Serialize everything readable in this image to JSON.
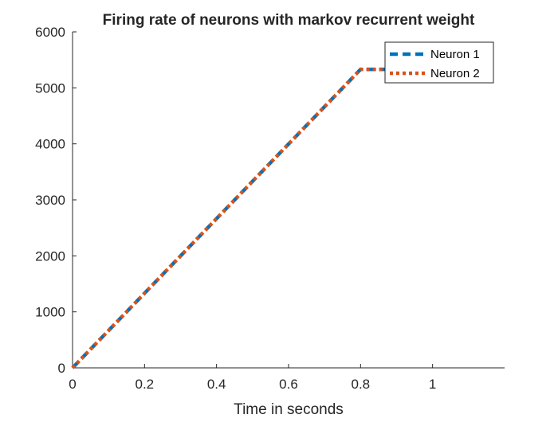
{
  "chart_data": {
    "type": "line",
    "title": "Firing rate of neurons with markov recurrent weight",
    "xlabel": "Time in seconds",
    "ylabel": "",
    "xlim": [
      0,
      1.2
    ],
    "ylim": [
      0,
      6000
    ],
    "xticks": [
      0,
      0.2,
      0.4,
      0.6,
      0.8,
      1
    ],
    "xtick_labels": [
      "0",
      "0.2",
      "0.4",
      "0.6",
      "0.8",
      "1"
    ],
    "yticks": [
      0,
      1000,
      2000,
      3000,
      4000,
      5000,
      6000
    ],
    "ytick_labels": [
      "0",
      "1000",
      "2000",
      "3000",
      "4000",
      "5000",
      "6000"
    ],
    "grid": false,
    "legend_position": "top-right",
    "series": [
      {
        "name": "Neuron 1",
        "color": "#0072BD",
        "line_style": "dashed",
        "x": [
          0,
          0.8,
          0.89
        ],
        "y": [
          0,
          5330,
          5330
        ]
      },
      {
        "name": "Neuron 2",
        "color": "#D95319",
        "line_style": "dotted",
        "x": [
          0,
          0.8,
          0.89
        ],
        "y": [
          0,
          5330,
          5330
        ]
      }
    ]
  }
}
